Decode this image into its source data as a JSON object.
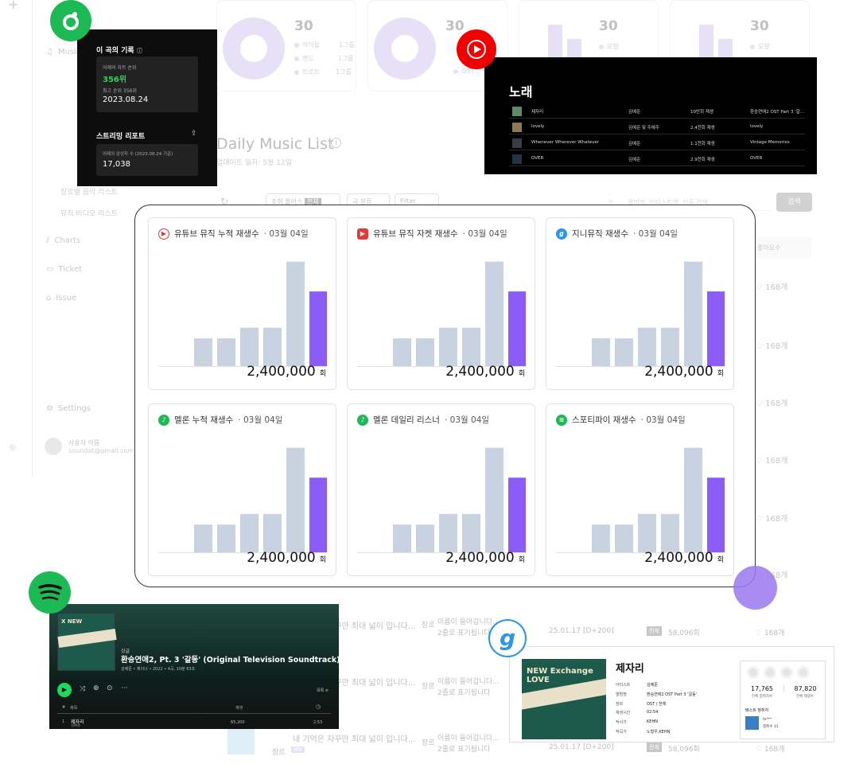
{
  "background": {
    "sidebar": {
      "items": [
        "Music",
        "Charts",
        "Ticket",
        "Issue",
        "Settings"
      ],
      "sub_items": [
        "장르별 음악 리스트",
        "뮤직 비디오 리스트"
      ],
      "user_name": "사용자 이름",
      "user_email": "soundat@gmail.com"
    },
    "stats": {
      "values": [
        "30",
        "30",
        "30",
        "30"
      ],
      "legend": [
        "아이돌",
        "밴드",
        "트로트",
        "OST",
        "모발"
      ],
      "legend_counts": [
        "1그룹",
        "1그룹",
        "1그룹"
      ]
    },
    "list": {
      "title": "Daily Music List",
      "update": "업데이트 일자: 5월 12일",
      "filter_sort": "조회 플러스",
      "filter_badge": "전체",
      "filter_genre": "곡 분류",
      "filter_btn": "Filter",
      "search_placeholder": "앨범명, 아티스트명, 이름 검색",
      "search_button": "검색",
      "col_likes": "좋아요수",
      "likes": "168개",
      "rows": [
        {
          "title": "내 기억은 자꾸만 최대 넓이 입니다...",
          "desc1": "이름이 들어갑니다...",
          "desc2": "2줄로 표기됩니다",
          "genre": "장르",
          "date": "25.01.17 [D+200]",
          "badge": "전체",
          "plays": "58,096회"
        },
        {
          "title": "내 기억은 자꾸만 최대 넓이 입니다...",
          "desc1": "이름이 들어갑니다...",
          "desc2": "2줄로 표기됩니다",
          "genre": "장르",
          "date": "",
          "badge": "",
          "plays": ""
        },
        {
          "title": "내 기억은 자꾸만 최대 넓이 입니다...",
          "desc1": "이름이 들어갑니다...",
          "desc2": "2줄로 표기됩니다",
          "genre": "장르",
          "date": "25.01.17 [D+200]",
          "badge": "전체",
          "plays": "58,096회"
        }
      ],
      "mv_badge": "MV"
    }
  },
  "panel": {
    "cards": [
      {
        "icon": "youtube-music-icon",
        "color": "#e53935",
        "title": "유튜브 뮤직 누적 재생수",
        "date": "03월 04일",
        "value": "2,400,000",
        "unit": "회"
      },
      {
        "icon": "youtube-icon",
        "color": "#e53935",
        "title": "유튜브 뮤직 자켓 재생수",
        "date": "03월 04일",
        "value": "2,400,000",
        "unit": "회"
      },
      {
        "icon": "genie-icon",
        "color": "#2b95e9",
        "title": "지니뮤직 재생수",
        "date": "03월 04일",
        "value": "2,400,000",
        "unit": "회"
      },
      {
        "icon": "melon-icon",
        "color": "#1db954",
        "title": "멜론 누적 재생수",
        "date": "03월 04일",
        "value": "2,400,000",
        "unit": "회"
      },
      {
        "icon": "melon-icon",
        "color": "#1db954",
        "title": "멜론 데일리 리스너",
        "date": "03월 04일",
        "value": "2,400,000",
        "unit": "회"
      },
      {
        "icon": "spotify-icon",
        "color": "#1db954",
        "title": "스포티파이 재생수",
        "date": "03월 04일",
        "value": "2,400,000",
        "unit": "회"
      }
    ],
    "bar_values": [
      0.26,
      0.26,
      0.36,
      0.36,
      0.98,
      0.7
    ],
    "bar_color": "#c9d2e1",
    "bar_highlight": "#8b5cf6"
  },
  "melon_panel": {
    "title": "이 곡의 기록",
    "rank_label": "어제의 차트 순위",
    "rank_value": "356위",
    "best_label": "최고 순위 356위",
    "best_date": "2023.08.24",
    "report_title": "스트리밍 리포트",
    "listeners_label": "어제의 감상자 수 (2023.08.24 기준)",
    "listeners_value": "17,038"
  },
  "ytmusic_panel": {
    "title": "노래",
    "songs": [
      {
        "title": "제자리",
        "artist": "김예준",
        "plays": "10만회 재생",
        "album": "환승연애2 OST Part 3 '갈..."
      },
      {
        "title": "lovely",
        "artist": "김예준 및 주예주",
        "plays": "2.4천회 재생",
        "album": "lovely"
      },
      {
        "title": "Whenever Wherever Whatever",
        "artist": "김예준",
        "plays": "1.1천회 재생",
        "album": "Vintage Memories"
      },
      {
        "title": "OVER",
        "artist": "김예준",
        "plays": "2.9천회 재생",
        "album": "OVER"
      }
    ]
  },
  "spotify_panel": {
    "type": "싱글",
    "album_title": "환승연애2, Pt. 3 '갈등' (Original Television Soundtrack)",
    "meta": "김예준 • 제이너 • 2022 • 4곡, 10분 63초",
    "col_num": "#",
    "col_title": "제목",
    "col_plays": "재생",
    "track_num": "1",
    "track_title": "제자리",
    "track_artist": "김예준",
    "track_plays": "65,200",
    "track_time": "2:53",
    "list_label": "목록"
  },
  "genie_panel": {
    "title": "제자리",
    "rows": [
      {
        "k": "아티스트",
        "v": "김예준"
      },
      {
        "k": "앨범명",
        "v": "환승연애2 OST Part 3 '갈등'"
      },
      {
        "k": "장르",
        "v": "OST / 전체"
      },
      {
        "k": "재생시간",
        "v": "02:54"
      },
      {
        "k": "작사가",
        "v": "KEHN"
      },
      {
        "k": "작곡가",
        "v": "노형우,KEHN"
      }
    ],
    "listeners": "17,765",
    "listeners_label": "전체 청취자수",
    "plays": "87,820",
    "plays_label": "전체 재생수",
    "best_label": "베스트 청취자",
    "best_user": "fe***",
    "best_count": "청취수  31",
    "album_art_text": "NEW Exchange LOVE"
  }
}
